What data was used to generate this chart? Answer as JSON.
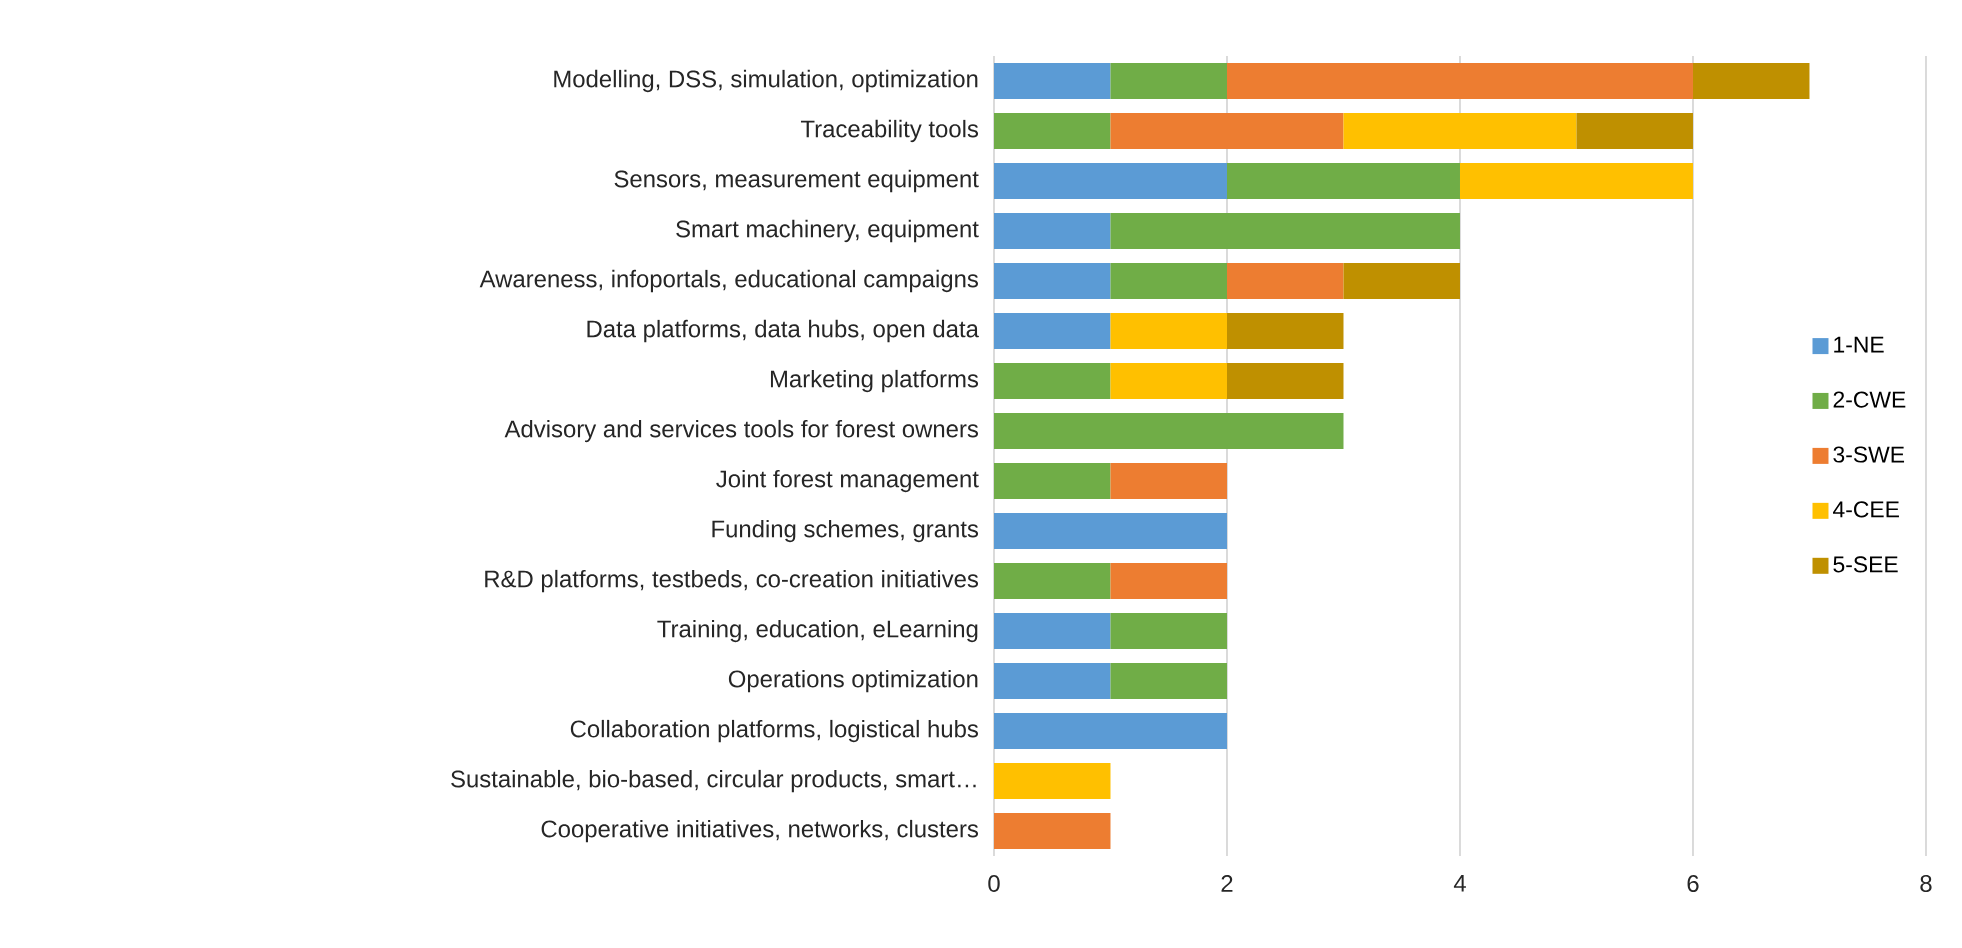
{
  "chart_data": {
    "type": "bar",
    "orientation": "horizontal",
    "stacked": true,
    "categories": [
      "Modelling, DSS, simulation, optimization",
      "Traceability tools",
      "Sensors, measurement equipment",
      "Smart machinery, equipment",
      "Awareness, infoportals, educational campaigns",
      "Data platforms, data hubs, open data",
      "Marketing platforms",
      "Advisory and services tools for forest owners",
      "Joint forest management",
      "Funding schemes, grants",
      "R&D platforms, testbeds, co-creation initiatives",
      "Training, education, eLearning",
      "Operations optimization",
      "Collaboration platforms, logistical hubs",
      "Sustainable, bio-based, circular products, smart…",
      "Cooperative initiatives, networks, clusters"
    ],
    "series": [
      {
        "name": "1-NE",
        "color": "#5b9bd5",
        "values": [
          1,
          0,
          2,
          1,
          1,
          1,
          0,
          0,
          0,
          2,
          0,
          1,
          1,
          2,
          0,
          0
        ]
      },
      {
        "name": "2-CWE",
        "color": "#70ad47",
        "values": [
          1,
          1,
          2,
          3,
          1,
          0,
          1,
          3,
          1,
          0,
          1,
          1,
          1,
          0,
          0,
          0
        ]
      },
      {
        "name": "3-SWE",
        "color": "#ed7d31",
        "values": [
          4,
          2,
          0,
          0,
          1,
          0,
          0,
          0,
          1,
          0,
          1,
          0,
          0,
          0,
          0,
          1
        ]
      },
      {
        "name": "4-CEE",
        "color": "#ffc000",
        "values": [
          0,
          2,
          2,
          0,
          0,
          1,
          1,
          0,
          0,
          0,
          0,
          0,
          0,
          0,
          1,
          0
        ]
      },
      {
        "name": "5-SEE",
        "color": "#bf9000",
        "values": [
          1,
          1,
          0,
          0,
          1,
          1,
          1,
          0,
          0,
          0,
          0,
          0,
          0,
          0,
          0,
          0
        ]
      }
    ],
    "xlim": [
      0,
      8
    ],
    "xticks": [
      0,
      2,
      4,
      6,
      8
    ],
    "grid": "x",
    "legend": "right"
  }
}
